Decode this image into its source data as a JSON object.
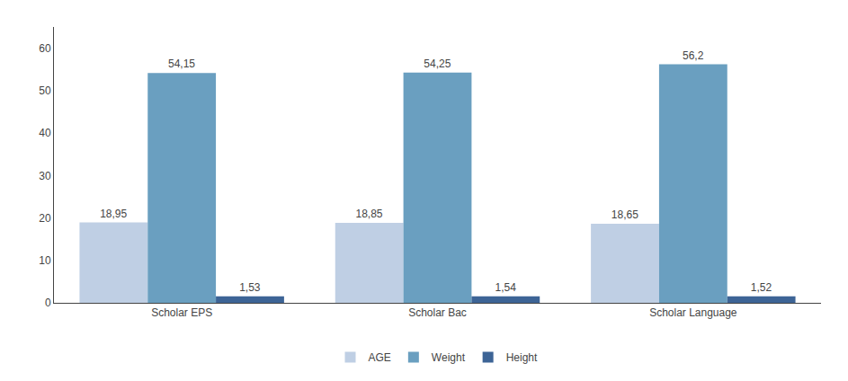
{
  "chart_data": {
    "type": "bar",
    "categories": [
      "Scholar EPS",
      "Scholar Bac",
      "Scholar Language"
    ],
    "series": [
      {
        "name": "AGE",
        "color": "#bfcfe4",
        "values": [
          18.95,
          18.85,
          18.65
        ],
        "value_labels": [
          "18,95",
          "18,85",
          "18,65"
        ]
      },
      {
        "name": "Weight",
        "color": "#6a9fc0",
        "values": [
          54.15,
          54.25,
          56.2
        ],
        "value_labels": [
          "54,15",
          "54,25",
          "56,2"
        ]
      },
      {
        "name": "Height",
        "color": "#3d6496",
        "values": [
          1.53,
          1.54,
          1.52
        ],
        "value_labels": [
          "1,53",
          "1,54",
          "1,52"
        ]
      }
    ],
    "ylim": [
      0,
      65
    ],
    "yticks": [
      0,
      10,
      20,
      30,
      40,
      50,
      60
    ],
    "grid": false,
    "legend": "bottom",
    "data_labels": true
  }
}
